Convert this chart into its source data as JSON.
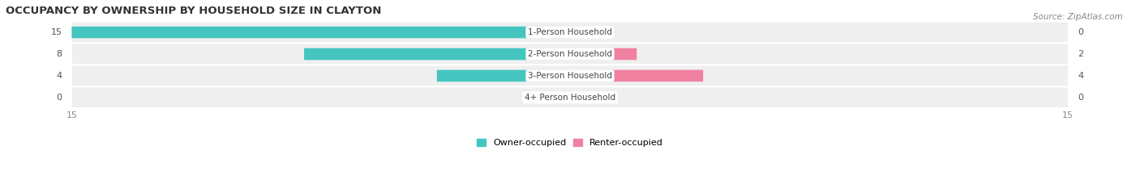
{
  "title": "OCCUPANCY BY OWNERSHIP BY HOUSEHOLD SIZE IN CLAYTON",
  "source": "Source: ZipAtlas.com",
  "categories": [
    "1-Person Household",
    "2-Person Household",
    "3-Person Household",
    "4+ Person Household"
  ],
  "owner_values": [
    15,
    8,
    4,
    0
  ],
  "renter_values": [
    0,
    2,
    4,
    0
  ],
  "owner_color": "#45C5BF",
  "renter_color": "#F080A0",
  "row_bg_color": "#EFEFEF",
  "row_bg_alt": "#E8E8E8",
  "axis_max": 15,
  "bar_height": 0.52,
  "title_fontsize": 9.5,
  "source_fontsize": 7.5,
  "label_fontsize": 7.5,
  "tick_fontsize": 8,
  "legend_fontsize": 8,
  "value_fontsize": 8
}
